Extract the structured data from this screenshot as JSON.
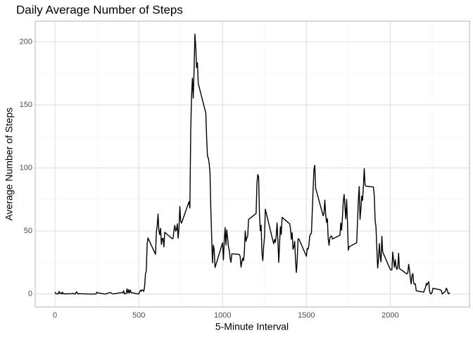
{
  "chart_data": {
    "type": "line",
    "title": "Daily Average Number of Steps",
    "xlabel": "5-Minute Interval",
    "ylabel": "Average Number of Steps",
    "color": "#000000",
    "grid": true,
    "xlim": [
      -117.75,
      2472.75
    ],
    "ylim": [
      -10.3,
      216.5
    ],
    "xticks": [
      0,
      500,
      1000,
      1500,
      2000
    ],
    "xminorticks": [
      250,
      750,
      1250,
      1750,
      2250
    ],
    "yticks": [
      0,
      50,
      100,
      150,
      200
    ],
    "yminorticks": [
      25,
      75,
      125,
      175
    ],
    "x": [
      0,
      5,
      10,
      15,
      20,
      25,
      30,
      35,
      40,
      45,
      50,
      55,
      100,
      105,
      110,
      115,
      120,
      125,
      130,
      135,
      140,
      145,
      150,
      200,
      230,
      245,
      250,
      255,
      300,
      330,
      335,
      340,
      345,
      400,
      405,
      410,
      415,
      420,
      425,
      430,
      435,
      440,
      445,
      450,
      455,
      500,
      505,
      510,
      515,
      520,
      525,
      530,
      535,
      540,
      545,
      550,
      555,
      600,
      605,
      610,
      615,
      620,
      625,
      630,
      635,
      640,
      645,
      650,
      655,
      700,
      705,
      710,
      715,
      720,
      725,
      730,
      735,
      740,
      745,
      750,
      755,
      800,
      805,
      810,
      815,
      820,
      825,
      830,
      835,
      840,
      845,
      850,
      855,
      900,
      905,
      910,
      915,
      920,
      925,
      930,
      935,
      940,
      945,
      950,
      955,
      1000,
      1005,
      1010,
      1015,
      1020,
      1025,
      1030,
      1035,
      1040,
      1045,
      1050,
      1055,
      1100,
      1105,
      1110,
      1115,
      1120,
      1125,
      1130,
      1135,
      1140,
      1145,
      1150,
      1155,
      1200,
      1205,
      1210,
      1215,
      1220,
      1225,
      1230,
      1235,
      1240,
      1245,
      1250,
      1255,
      1300,
      1305,
      1310,
      1315,
      1320,
      1325,
      1330,
      1335,
      1340,
      1345,
      1350,
      1355,
      1400,
      1405,
      1410,
      1415,
      1420,
      1425,
      1430,
      1435,
      1440,
      1445,
      1450,
      1455,
      1500,
      1505,
      1510,
      1515,
      1520,
      1525,
      1530,
      1535,
      1540,
      1545,
      1550,
      1555,
      1600,
      1605,
      1610,
      1615,
      1620,
      1625,
      1630,
      1635,
      1640,
      1645,
      1650,
      1655,
      1700,
      1705,
      1710,
      1715,
      1720,
      1725,
      1730,
      1735,
      1740,
      1745,
      1750,
      1755,
      1800,
      1805,
      1810,
      1815,
      1820,
      1825,
      1830,
      1835,
      1840,
      1845,
      1850,
      1855,
      1900,
      1905,
      1910,
      1915,
      1920,
      1925,
      1930,
      1935,
      1940,
      1945,
      1950,
      1955,
      2000,
      2005,
      2010,
      2015,
      2020,
      2025,
      2030,
      2035,
      2040,
      2045,
      2050,
      2055,
      2100,
      2105,
      2110,
      2115,
      2120,
      2125,
      2130,
      2135,
      2140,
      2145,
      2150,
      2155,
      2200,
      2205,
      2210,
      2215,
      2220,
      2225,
      2230,
      2235,
      2240,
      2245,
      2250,
      2255,
      2300,
      2305,
      2310,
      2315,
      2320,
      2325,
      2330,
      2335,
      2340,
      2345,
      2350,
      2355
    ],
    "values": [
      1.7,
      0.3,
      0.1,
      0.2,
      0.1,
      2.1,
      0.5,
      0.9,
      0,
      1.5,
      0.3,
      0.1,
      0.3,
      0.7,
      0.2,
      0.3,
      0,
      1.1,
      1.8,
      0.2,
      0.2,
      0.4,
      0.3,
      0,
      0,
      0,
      1.5,
      0.9,
      0,
      1.3,
      0.7,
      0.5,
      0.1,
      1.2,
      0.9,
      2.6,
      0,
      0.3,
      0.4,
      4.1,
      0.7,
      3.5,
      0.8,
      3.1,
      1.1,
      0,
      1.6,
      3.0,
      2.2,
      3.3,
      3.0,
      2.1,
      6.1,
      16,
      18.3,
      39.5,
      44.5,
      31.5,
      49.3,
      53.8,
      63.5,
      50,
      47.1,
      52.2,
      39.3,
      44,
      44.2,
      37.4,
      49,
      43.8,
      44.4,
      50.5,
      54.5,
      49.9,
      51,
      55.7,
      44.3,
      52.3,
      69.5,
      57.8,
      56.2,
      73.4,
      68.2,
      129.4,
      157.5,
      171.2,
      155.4,
      177.3,
      206.2,
      195.9,
      179.6,
      183.4,
      167,
      143.5,
      124,
      109.1,
      108.1,
      103.7,
      96,
      66.2,
      45.2,
      24.8,
      38.8,
      35,
      21.1,
      40.6,
      27,
      42.4,
      52.7,
      38.9,
      50.8,
      44.3,
      37.4,
      34.7,
      28.3,
      25.1,
      31.9,
      31.4,
      29.7,
      21.3,
      25.5,
      28.4,
      26.5,
      33.4,
      50,
      42,
      44.6,
      46,
      59.2,
      63.9,
      87.7,
      94.8,
      92.8,
      63.4,
      50.2,
      54.5,
      32.4,
      26.5,
      37.7,
      45.1,
      67.3,
      42.3,
      39.9,
      43.3,
      41,
      46.2,
      56.4,
      42.8,
      25.1,
      40,
      53.5,
      47.3,
      60.8,
      55.8,
      52,
      43.6,
      48.7,
      35.5,
      37.5,
      41.8,
      27.5,
      17.1,
      26.1,
      43.6,
      43.8,
      30,
      36.1,
      35.5,
      38.8,
      46,
      47.8,
      48.1,
      65.3,
      82.9,
      98.7,
      102.1,
      84,
      62.1,
      64.1,
      74.5,
      63.2,
      56.9,
      59.8,
      43.9,
      38.6,
      44.7,
      45.5,
      46.2,
      43.7,
      46.6,
      56.3,
      50.7,
      61.2,
      73.4,
      79.1,
      68.9,
      59.7,
      75.1,
      56.5,
      34.8,
      37.5,
      40.7,
      58,
      74.7,
      85.3,
      59.3,
      67.8,
      77.7,
      74.2,
      85.3,
      99.5,
      86.6,
      85.6,
      84.9,
      77.8,
      58,
      53.4,
      36.3,
      20.7,
      27.4,
      40,
      30.2,
      25.5,
      45.7,
      33.5,
      19.6,
      19,
      19.3,
      33.3,
      26.8,
      21.2,
      27.3,
      21.3,
      19.5,
      21.3,
      32.3,
      20.2,
      15.9,
      17.2,
      23.5,
      19.2,
      12.5,
      8,
      14.7,
      16.3,
      8.7,
      7.8,
      8.1,
      2.6,
      1.5,
      3.7,
      4.8,
      8.5,
      7.1,
      8.7,
      9.8,
      2.2,
      0.3,
      0.1,
      1.6,
      4.6,
      3.3,
      2.8,
      0,
      0.8,
      1,
      1.6,
      2.6,
      4.7,
      3.3,
      0.6,
      0.2,
      1.1
    ]
  }
}
